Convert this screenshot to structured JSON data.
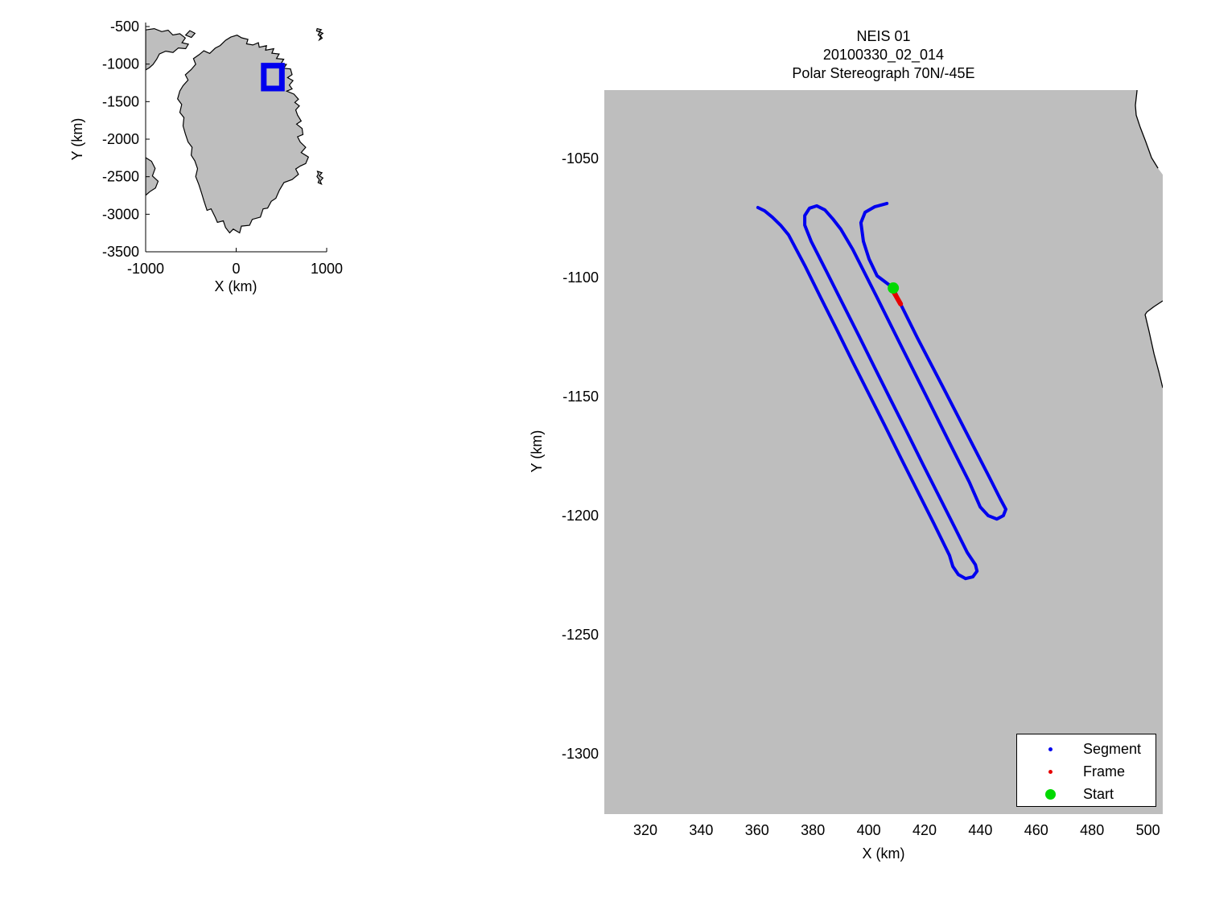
{
  "figure": {
    "background": "#ffffff",
    "land_color": "#bebebe",
    "coast_color": "#000000",
    "segment_color": "#0000ee",
    "frame_color": "#e60000",
    "start_color": "#00d900",
    "box_color": "#0000ee"
  },
  "chart_data": [
    {
      "id": "inset-locator-map",
      "type": "line",
      "xlabel": "X (km)",
      "ylabel": "Y (km)",
      "xlim": [
        -1000,
        1000
      ],
      "ylim": [
        -3500,
        -500
      ],
      "xticks": [
        -1000,
        0,
        1000
      ],
      "yticks": [
        -500,
        -1000,
        -1500,
        -2000,
        -2500,
        -3000,
        -3500
      ],
      "grid": false,
      "region_box": {
        "x": [
          305,
          505
        ],
        "y": [
          -1325,
          -1021
        ]
      },
      "greenland": [
        [
          -60,
          -640
        ],
        [
          10,
          -615
        ],
        [
          60,
          -650
        ],
        [
          130,
          -670
        ],
        [
          115,
          -730
        ],
        [
          185,
          -745
        ],
        [
          245,
          -715
        ],
        [
          255,
          -775
        ],
        [
          335,
          -755
        ],
        [
          325,
          -815
        ],
        [
          415,
          -795
        ],
        [
          395,
          -855
        ],
        [
          475,
          -865
        ],
        [
          445,
          -925
        ],
        [
          525,
          -935
        ],
        [
          495,
          -995
        ],
        [
          555,
          -1005
        ],
        [
          525,
          -1055
        ],
        [
          600,
          -1065
        ],
        [
          618,
          -1140
        ],
        [
          568,
          -1180
        ],
        [
          628,
          -1220
        ],
        [
          588,
          -1280
        ],
        [
          618,
          -1330
        ],
        [
          558,
          -1360
        ],
        [
          638,
          -1400
        ],
        [
          688,
          -1468
        ],
        [
          648,
          -1510
        ],
        [
          698,
          -1558
        ],
        [
          658,
          -1610
        ],
        [
          678,
          -1680
        ],
        [
          718,
          -1758
        ],
        [
          668,
          -1800
        ],
        [
          728,
          -1858
        ],
        [
          738,
          -1938
        ],
        [
          678,
          -1968
        ],
        [
          708,
          -2038
        ],
        [
          768,
          -2108
        ],
        [
          718,
          -2178
        ],
        [
          798,
          -2238
        ],
        [
          768,
          -2325
        ],
        [
          708,
          -2358
        ],
        [
          658,
          -2398
        ],
        [
          688,
          -2468
        ],
        [
          618,
          -2538
        ],
        [
          528,
          -2578
        ],
        [
          478,
          -2678
        ],
        [
          438,
          -2788
        ],
        [
          388,
          -2828
        ],
        [
          348,
          -2918
        ],
        [
          298,
          -2928
        ],
        [
          268,
          -3038
        ],
        [
          178,
          -3068
        ],
        [
          148,
          -3148
        ],
        [
          58,
          -3158
        ],
        [
          38,
          -3248
        ],
        [
          -32,
          -3198
        ],
        [
          -72,
          -3248
        ],
        [
          -117,
          -3178
        ],
        [
          -142,
          -3088
        ],
        [
          -207,
          -3108
        ],
        [
          -232,
          -3038
        ],
        [
          -277,
          -2928
        ],
        [
          -322,
          -2948
        ],
        [
          -357,
          -2818
        ],
        [
          -382,
          -2718
        ],
        [
          -412,
          -2608
        ],
        [
          -447,
          -2498
        ],
        [
          -427,
          -2393
        ],
        [
          -457,
          -2288
        ],
        [
          -497,
          -2213
        ],
        [
          -487,
          -2108
        ],
        [
          -532,
          -2038
        ],
        [
          -562,
          -1928
        ],
        [
          -587,
          -1823
        ],
        [
          -577,
          -1713
        ],
        [
          -622,
          -1643
        ],
        [
          -602,
          -1538
        ],
        [
          -647,
          -1463
        ],
        [
          -622,
          -1358
        ],
        [
          -587,
          -1288
        ],
        [
          -532,
          -1213
        ],
        [
          -562,
          -1143
        ],
        [
          -497,
          -1073
        ],
        [
          -447,
          -1003
        ],
        [
          -472,
          -928
        ],
        [
          -407,
          -873
        ],
        [
          -357,
          -823
        ],
        [
          -292,
          -858
        ],
        [
          -232,
          -788
        ],
        [
          -177,
          -753
        ],
        [
          -117,
          -683
        ]
      ],
      "islands": [
        [
          [
            -1000,
            -545
          ],
          [
            -905,
            -528
          ],
          [
            -822,
            -568
          ],
          [
            -752,
            -548
          ],
          [
            -700,
            -612
          ],
          [
            -622,
            -595
          ],
          [
            -562,
            -652
          ],
          [
            -598,
            -715
          ],
          [
            -528,
            -735
          ],
          [
            -558,
            -795
          ],
          [
            -638,
            -785
          ],
          [
            -698,
            -845
          ],
          [
            -778,
            -828
          ],
          [
            -848,
            -865
          ],
          [
            -878,
            -935
          ],
          [
            -918,
            -1005
          ],
          [
            -958,
            -1048
          ],
          [
            -1000,
            -1078
          ]
        ],
        [
          [
            -512,
            -555
          ],
          [
            -455,
            -590
          ],
          [
            -495,
            -645
          ],
          [
            -558,
            -615
          ]
        ],
        [
          [
            -1000,
            -2245
          ],
          [
            -935,
            -2295
          ],
          [
            -895,
            -2390
          ],
          [
            -925,
            -2490
          ],
          [
            -862,
            -2560
          ],
          [
            -892,
            -2650
          ],
          [
            -955,
            -2700
          ],
          [
            -1000,
            -2748
          ]
        ],
        [
          [
            895,
            -528
          ],
          [
            940,
            -542
          ],
          [
            918,
            -568
          ],
          [
            958,
            -590
          ],
          [
            928,
            -618
          ],
          [
            950,
            -655
          ],
          [
            918,
            -678
          ],
          [
            935,
            -640
          ],
          [
            905,
            -610
          ],
          [
            925,
            -575
          ],
          [
            888,
            -558
          ]
        ],
        [
          [
            898,
            -2428
          ],
          [
            948,
            -2448
          ],
          [
            918,
            -2488
          ],
          [
            958,
            -2518
          ],
          [
            928,
            -2558
          ],
          [
            942,
            -2598
          ],
          [
            905,
            -2578
          ],
          [
            918,
            -2538
          ],
          [
            892,
            -2498
          ],
          [
            908,
            -2462
          ]
        ]
      ]
    },
    {
      "id": "flight-track-map",
      "type": "scatter",
      "titles": [
        "NEIS 01",
        "20100330_02_014",
        "Polar Stereograph 70N/-45E"
      ],
      "xlabel": "X (km)",
      "ylabel": "Y (km)",
      "xlim": [
        305.3,
        505.3
      ],
      "ylim": [
        -1325.3,
        -1021.3
      ],
      "xticks": [
        320,
        340,
        360,
        380,
        400,
        420,
        440,
        460,
        480,
        500
      ],
      "yticks": [
        -1050,
        -1100,
        -1150,
        -1200,
        -1250,
        -1300
      ],
      "grid": false,
      "series": [
        {
          "name": "Segment",
          "points": [
            [
              406.5,
              -1068.9
            ],
            [
              402.1,
              -1070.3
            ],
            [
              398.7,
              -1072.6
            ],
            [
              397.2,
              -1077.0
            ],
            [
              398.1,
              -1084.8
            ],
            [
              400.1,
              -1092.2
            ],
            [
              403.0,
              -1099.3
            ],
            [
              408.8,
              -1104.4
            ],
            [
              411.4,
              -1111.1
            ],
            [
              417.4,
              -1125.3
            ],
            [
              426.1,
              -1144.9
            ],
            [
              434.7,
              -1164.5
            ],
            [
              443.3,
              -1184.1
            ],
            [
              447.1,
              -1192.9
            ],
            [
              449.1,
              -1197.3
            ],
            [
              448.2,
              -1200.0
            ],
            [
              445.9,
              -1201.4
            ],
            [
              442.8,
              -1200.0
            ],
            [
              439.9,
              -1196.3
            ],
            [
              436.1,
              -1186.1
            ],
            [
              428.9,
              -1169.3
            ],
            [
              420.3,
              -1149.0
            ],
            [
              411.6,
              -1128.7
            ],
            [
              403.0,
              -1108.4
            ],
            [
              394.3,
              -1088.2
            ],
            [
              390.0,
              -1079.7
            ],
            [
              387.1,
              -1075.3
            ],
            [
              384.3,
              -1071.6
            ],
            [
              381.4,
              -1069.9
            ],
            [
              378.8,
              -1070.9
            ],
            [
              377.1,
              -1074.0
            ],
            [
              377.1,
              -1078.0
            ],
            [
              379.4,
              -1084.8
            ],
            [
              384.8,
              -1097.3
            ],
            [
              390.6,
              -1110.8
            ],
            [
              396.4,
              -1124.3
            ],
            [
              402.1,
              -1137.8
            ],
            [
              407.9,
              -1151.4
            ],
            [
              413.7,
              -1164.9
            ],
            [
              419.4,
              -1178.4
            ],
            [
              425.2,
              -1191.9
            ],
            [
              431.0,
              -1205.4
            ],
            [
              435.3,
              -1215.5
            ],
            [
              438.2,
              -1220.6
            ],
            [
              438.8,
              -1223.3
            ],
            [
              437.3,
              -1225.7
            ],
            [
              434.7,
              -1226.4
            ],
            [
              432.1,
              -1224.7
            ],
            [
              430.1,
              -1221.3
            ],
            [
              428.9,
              -1216.6
            ],
            [
              423.2,
              -1203.0
            ],
            [
              417.4,
              -1189.5
            ],
            [
              411.6,
              -1176.0
            ],
            [
              405.9,
              -1162.5
            ],
            [
              400.1,
              -1149.0
            ],
            [
              394.3,
              -1135.5
            ],
            [
              388.6,
              -1122.0
            ],
            [
              382.8,
              -1108.4
            ],
            [
              377.1,
              -1094.9
            ],
            [
              371.3,
              -1082.1
            ],
            [
              368.4,
              -1078.0
            ],
            [
              365.5,
              -1074.7
            ],
            [
              362.7,
              -1072.0
            ],
            [
              360.3,
              -1070.6
            ]
          ]
        },
        {
          "name": "Frame",
          "points": [
            [
              408.8,
              -1105.7
            ],
            [
              411.4,
              -1111.1
            ]
          ]
        },
        {
          "name": "Start",
          "points": [
            [
              408.8,
              -1104.4
            ]
          ]
        }
      ],
      "ocean_patches": [
        [
          [
            496.1,
            -1021.3
          ],
          [
            495.5,
            -1027.7
          ],
          [
            495.8,
            -1031.8
          ],
          [
            497.2,
            -1036.8
          ],
          [
            499.2,
            -1042.9
          ],
          [
            501.3,
            -1049.7
          ],
          [
            503.6,
            -1054.1
          ],
          [
            505.3,
            -1056.8
          ],
          [
            505.3,
            -1021.3
          ]
        ],
        [
          [
            505.3,
            -1109.8
          ],
          [
            502.2,
            -1112.2
          ],
          [
            499.6,
            -1114.5
          ],
          [
            499.0,
            -1115.6
          ],
          [
            500.4,
            -1122.6
          ],
          [
            502.2,
            -1132.1
          ],
          [
            503.9,
            -1139.5
          ],
          [
            505.3,
            -1146.3
          ]
        ]
      ],
      "legend": {
        "items": [
          {
            "label": "Segment",
            "color": "#0000ee",
            "marker_px": 5
          },
          {
            "label": "Frame",
            "color": "#e60000",
            "marker_px": 5
          },
          {
            "label": "Start",
            "color": "#00d900",
            "marker_px": 13
          }
        ]
      }
    }
  ]
}
